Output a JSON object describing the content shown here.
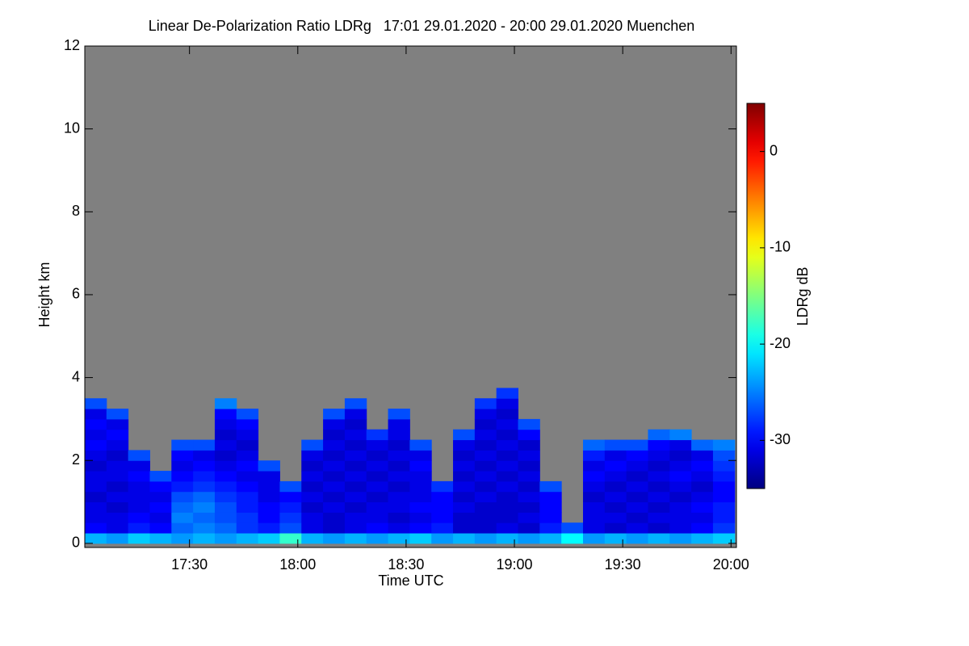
{
  "chart_data": {
    "type": "heatmap",
    "title": "Linear De-Polarization Ratio LDRg   17:01 29.01.2020 - 20:00 29.01.2020 Muenchen",
    "x_label": "Time UTC",
    "y_label": "Height km",
    "colorbar_label": "LDRg dB",
    "background_color": "#808080",
    "colormap": "jet",
    "x": [
      1021,
      1027,
      1033,
      1039,
      1045,
      1051,
      1057,
      1063,
      1069,
      1075,
      1081,
      1087,
      1093,
      1099,
      1105,
      1111,
      1117,
      1123,
      1129,
      1135,
      1141,
      1147,
      1153,
      1159,
      1165,
      1171,
      1177,
      1183,
      1189,
      1195
    ],
    "y": [
      0,
      0.25,
      0.5,
      0.75,
      1,
      1.25,
      1.5,
      1.75,
      2,
      2.25,
      2.5,
      2.75,
      3,
      3.25,
      3.5
    ],
    "z": [
      [
        -23,
        -24,
        -22,
        -23,
        -24,
        -23,
        -24,
        -23,
        -22,
        -18,
        -23,
        -24,
        -23,
        -24,
        -23,
        -22,
        -24,
        -23,
        -24,
        -23,
        -24,
        -23,
        -20,
        -24,
        -23,
        -24,
        -23,
        -24,
        -23,
        -22
      ],
      [
        -30,
        -31,
        -29,
        -30,
        -26,
        -25,
        -26,
        -28,
        -29,
        -27,
        -31,
        -32,
        -31,
        -30,
        -31,
        -30,
        -29,
        -32,
        -32,
        -31,
        -32,
        -29,
        -27,
        -31,
        -32,
        -31,
        -32,
        -31,
        -30,
        -28
      ],
      [
        -31,
        -31,
        -30,
        -31,
        -25,
        -26,
        -27,
        -28,
        -30,
        -28,
        -31,
        -32,
        -31,
        -31,
        -32,
        -31,
        -30,
        -32,
        -32,
        -32,
        -31,
        -30,
        null,
        -31,
        -31,
        -32,
        -31,
        -31,
        -31,
        -29
      ],
      [
        -31,
        -32,
        -31,
        -30,
        -26,
        -25,
        -27,
        -29,
        -30,
        -29,
        -32,
        -31,
        -32,
        -31,
        -31,
        -30,
        -30,
        -31,
        -32,
        -32,
        -32,
        -30,
        null,
        -31,
        -32,
        -31,
        -32,
        -31,
        -30,
        -29
      ],
      [
        -32,
        -31,
        -31,
        -31,
        -27,
        -26,
        -28,
        -29,
        -31,
        -30,
        -31,
        -32,
        -31,
        -32,
        -31,
        -31,
        -30,
        -32,
        -31,
        -32,
        -31,
        -30,
        null,
        -32,
        -31,
        -32,
        -31,
        -32,
        -31,
        -30
      ],
      [
        -31,
        -32,
        -31,
        -30,
        -29,
        -28,
        -29,
        -30,
        -31,
        -27,
        -32,
        -31,
        -32,
        -31,
        -32,
        -31,
        -28,
        -31,
        -32,
        -31,
        -32,
        -27,
        null,
        -31,
        -32,
        -31,
        -32,
        -31,
        -32,
        -30
      ],
      [
        -31,
        -31,
        -30,
        -27,
        -30,
        -29,
        -30,
        -31,
        -31,
        null,
        -31,
        -32,
        -31,
        -32,
        -31,
        -31,
        null,
        -32,
        -31,
        -32,
        -31,
        null,
        null,
        -30,
        -31,
        -32,
        -31,
        -30,
        -31,
        -29
      ],
      [
        -32,
        -31,
        -31,
        null,
        -31,
        -30,
        -31,
        -30,
        -27,
        null,
        -32,
        -31,
        -32,
        -31,
        -32,
        -30,
        null,
        -31,
        -32,
        -31,
        -32,
        null,
        null,
        -31,
        -30,
        -31,
        -32,
        -31,
        -30,
        -28
      ],
      [
        -31,
        -32,
        -27,
        null,
        -30,
        -31,
        -32,
        -31,
        null,
        null,
        -31,
        -32,
        -31,
        -32,
        -31,
        -31,
        null,
        -32,
        -31,
        -32,
        -31,
        null,
        null,
        -29,
        -31,
        -30,
        -31,
        -32,
        -31,
        -27
      ],
      [
        -30,
        -31,
        null,
        null,
        -27,
        -27,
        -31,
        -32,
        null,
        null,
        -27,
        -31,
        -32,
        -31,
        -32,
        -27,
        null,
        -31,
        -32,
        -31,
        -32,
        null,
        null,
        -26,
        -27,
        -27,
        -30,
        -31,
        -26,
        -25
      ],
      [
        -31,
        -30,
        null,
        null,
        null,
        null,
        -32,
        -31,
        null,
        null,
        null,
        -32,
        -31,
        -28,
        -31,
        null,
        null,
        -27,
        -31,
        -32,
        -30,
        null,
        null,
        null,
        null,
        null,
        -26,
        -25,
        null,
        null
      ],
      [
        -30,
        -31,
        null,
        null,
        null,
        null,
        -31,
        -30,
        null,
        null,
        null,
        -31,
        -32,
        null,
        -31,
        null,
        null,
        null,
        -32,
        -31,
        -27,
        null,
        null,
        null,
        null,
        null,
        null,
        null,
        null,
        null
      ],
      [
        -31,
        -27,
        null,
        null,
        null,
        null,
        -30,
        -27,
        null,
        null,
        null,
        -27,
        -31,
        null,
        -27,
        null,
        null,
        null,
        -31,
        -32,
        null,
        null,
        null,
        null,
        null,
        null,
        null,
        null,
        null,
        null
      ],
      [
        -27,
        null,
        null,
        null,
        null,
        null,
        -25,
        null,
        null,
        null,
        null,
        null,
        -27,
        null,
        null,
        null,
        null,
        null,
        -28,
        -31,
        null,
        null,
        null,
        null,
        null,
        null,
        null,
        null,
        null,
        null
      ],
      [
        null,
        null,
        null,
        null,
        null,
        null,
        null,
        null,
        null,
        null,
        null,
        null,
        null,
        null,
        null,
        null,
        null,
        null,
        null,
        -28,
        null,
        null,
        null,
        null,
        null,
        null,
        null,
        null,
        null,
        null
      ]
    ],
    "xlim": [
      1021,
      1201.5
    ],
    "xticks": [
      {
        "value": 1050,
        "label": "17:30"
      },
      {
        "value": 1080,
        "label": "18:00"
      },
      {
        "value": 1110,
        "label": "18:30"
      },
      {
        "value": 1140,
        "label": "19:00"
      },
      {
        "value": 1170,
        "label": "19:30"
      },
      {
        "value": 1200,
        "label": "20:00"
      }
    ],
    "ylim": [
      -0.1,
      12
    ],
    "yticks": [
      0,
      2,
      4,
      6,
      8,
      10,
      12
    ],
    "clim": [
      -35,
      5
    ],
    "colorbar_ticks": [
      0,
      -10,
      -20,
      -30
    ]
  }
}
